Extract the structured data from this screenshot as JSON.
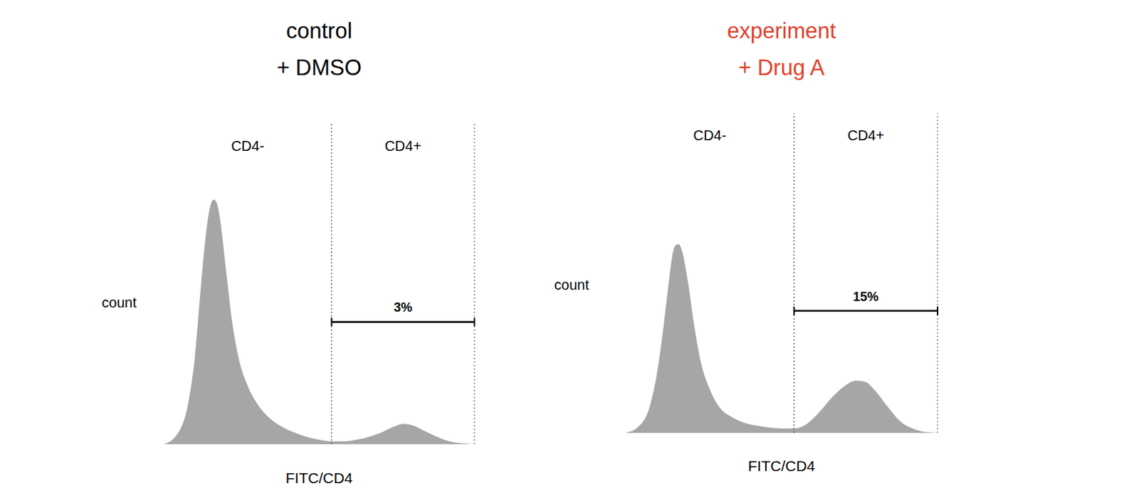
{
  "chart_data": [
    {
      "type": "area",
      "title": "control",
      "subtitle": "+ DMSO",
      "x_label": "FITC/CD4",
      "y_label": "count",
      "x": [
        0,
        4,
        8,
        10,
        12,
        14,
        15,
        16,
        17,
        18,
        20,
        22,
        24,
        27,
        30,
        34,
        38,
        42,
        46,
        50,
        54,
        58,
        62,
        66,
        70,
        74,
        77,
        80,
        84,
        88,
        92,
        96,
        100
      ],
      "values": [
        0,
        3,
        15,
        30,
        55,
        76,
        82,
        84,
        83,
        78,
        60,
        42,
        30,
        20,
        14,
        9,
        6,
        4,
        2.5,
        1.5,
        1,
        1,
        1.5,
        2.5,
        4,
        6,
        7,
        6.5,
        4.5,
        2.5,
        1,
        0.3,
        0
      ],
      "color": "#a6a6a6",
      "xlim": [
        0,
        100
      ],
      "ylim": [
        0,
        110
      ],
      "tick_labels": false,
      "gates": [
        {
          "label": "CD4-",
          "x": [
            0,
            54
          ]
        },
        {
          "label": "CD4+",
          "x": [
            54,
            100
          ]
        }
      ],
      "bracket": {
        "text": "3%",
        "x": [
          54,
          100
        ],
        "y": 42
      }
    },
    {
      "type": "area",
      "title": "experiment",
      "subtitle": "+ Drug A",
      "x_label": "FITC/CD4",
      "y_label": "count",
      "x": [
        0,
        4,
        8,
        10,
        12,
        14,
        15,
        16,
        17,
        18,
        20,
        22,
        24,
        27,
        30,
        34,
        38,
        42,
        46,
        50,
        54,
        58,
        62,
        66,
        70,
        74,
        77,
        80,
        84,
        88,
        92,
        96,
        100
      ],
      "values": [
        0,
        2,
        10,
        20,
        35,
        53,
        61,
        64.5,
        65,
        63,
        52,
        37,
        25,
        15,
        9,
        5.5,
        3.5,
        2.5,
        1.8,
        1.5,
        1.5,
        3,
        7,
        12,
        16,
        18,
        17.5,
        14.5,
        9,
        4,
        1.5,
        0.3,
        0
      ],
      "color": "#a6a6a6",
      "xlim": [
        0,
        100
      ],
      "ylim": [
        0,
        110
      ],
      "tick_labels": false,
      "gates": [
        {
          "label": "CD4-",
          "x": [
            0,
            54
          ]
        },
        {
          "label": "CD4+",
          "x": [
            54,
            100
          ]
        }
      ],
      "bracket": {
        "text": "15%",
        "x": [
          54,
          100
        ],
        "y": 42
      }
    }
  ]
}
